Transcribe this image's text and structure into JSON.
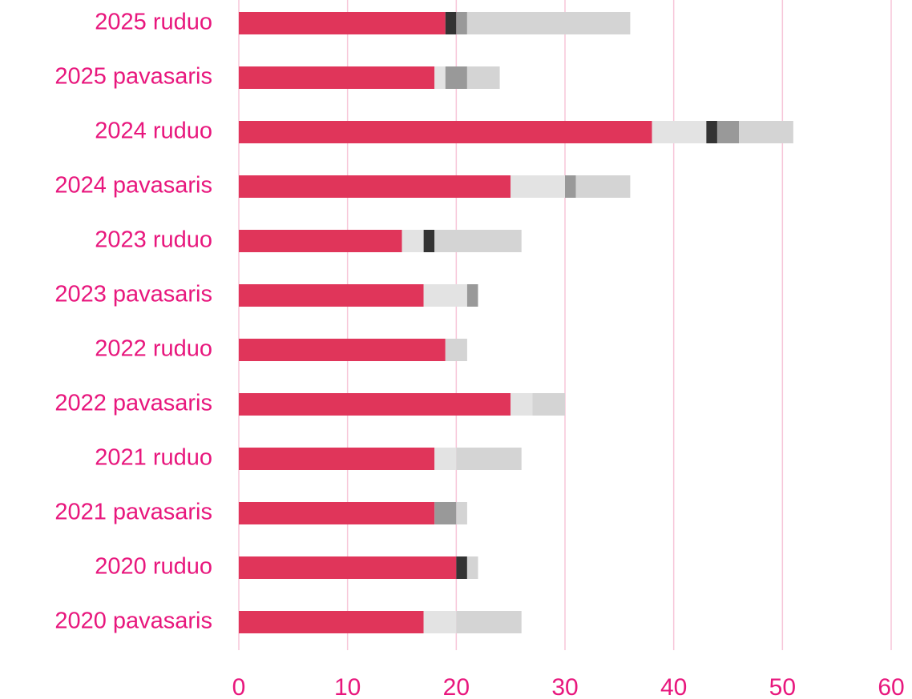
{
  "chart_data": {
    "type": "stacked_barh",
    "categories": [
      "2025 ruduo",
      "2025 pavasaris",
      "2024 ruduo",
      "2024 pavasaris",
      "2023 ruduo",
      "2023 pavasaris",
      "2022 ruduo",
      "2022 pavasaris",
      "2021 ruduo",
      "2021 pavasaris",
      "2020 ruduo",
      "2020 pavasaris"
    ],
    "series": [
      {
        "color": "#e0355a",
        "values": [
          19,
          18,
          38,
          25,
          15,
          17,
          19,
          25,
          18,
          18,
          20,
          17
        ]
      },
      {
        "color": "#e3e3e3",
        "values": [
          0,
          1,
          5,
          5,
          2,
          4,
          0,
          2,
          2,
          0,
          0,
          3
        ]
      },
      {
        "color": "#333333",
        "values": [
          1,
          0,
          1,
          0,
          1,
          0,
          0,
          0,
          0,
          0,
          1,
          0
        ]
      },
      {
        "color": "#999999",
        "values": [
          1,
          2,
          2,
          1,
          0,
          1,
          0,
          0,
          0,
          2,
          0,
          0
        ]
      },
      {
        "color": "#d4d4d4",
        "values": [
          15,
          3,
          5,
          5,
          8,
          0,
          2,
          3,
          6,
          1,
          1,
          6
        ]
      }
    ],
    "xlim": [
      0,
      60
    ],
    "xticks": [
      0,
      10,
      20,
      30,
      40,
      50,
      60
    ],
    "grid": true
  }
}
